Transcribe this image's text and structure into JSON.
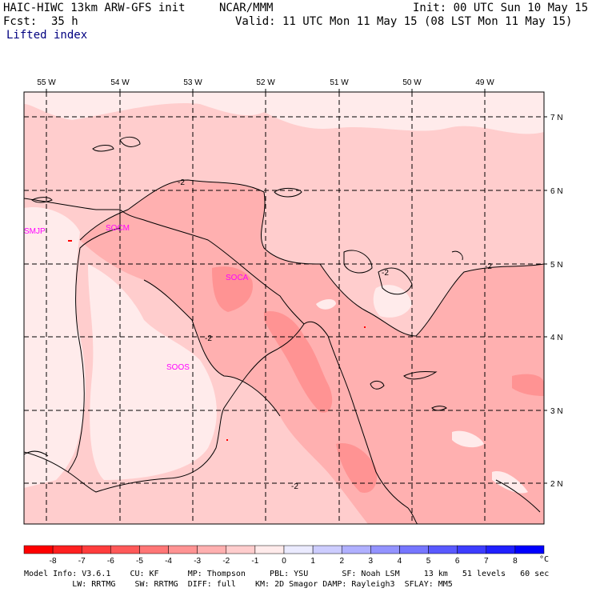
{
  "header": {
    "model": "HAIC-HIWC 13km ARW-GFS init",
    "org": "NCAR/MMM",
    "init": "Init: 00 UTC Sun 10 May 15",
    "fcst_label": "Fcst:",
    "fcst_value": "35 h",
    "valid": "Valid: 11 UTC Mon 11 May 15 (08 LST Mon 11 May 15)",
    "field": "Lifted index"
  },
  "map": {
    "lon_labels": [
      "55 W",
      "54 W",
      "53 W",
      "52 W",
      "51 W",
      "50 W",
      "49 W"
    ],
    "lat_labels": [
      "7 N",
      "6 N",
      "5 N",
      "4 N",
      "3 N",
      "2 N"
    ],
    "stations": [
      "SMJP",
      "SOCM",
      "SOCA",
      "SOOS"
    ],
    "contour_labels": [
      "-2",
      "-2",
      "-2",
      "-2",
      "-2"
    ]
  },
  "colorbar": {
    "labels": [
      "-8",
      "-7",
      "-6",
      "-5",
      "-4",
      "-3",
      "-2",
      "-1",
      "0",
      "1",
      "2",
      "3",
      "4",
      "5",
      "6",
      "7",
      "8"
    ],
    "unit": "°C",
    "colors": [
      "#ff0000",
      "#ff2020",
      "#ff3d3d",
      "#ff5959",
      "#ff7676",
      "#ff9393",
      "#ffb0b0",
      "#ffcdcd",
      "#ffebeb",
      "#ebebff",
      "#cdcdff",
      "#b0b0ff",
      "#9393ff",
      "#7676ff",
      "#5959ff",
      "#3d3dff",
      "#2020ff",
      "#0000ff"
    ]
  },
  "footer": {
    "line1": "Model Info: V3.6.1    CU: KF      MP: Thompson     PBL: YSU       SF: Noah LSM     13 km   51 levels   60 sec",
    "line2": "          LW: RRTMG    SW: RRTMG  DIFF: full    KM: 2D Smagor DAMP: Rayleigh3  SFLAY: MM5"
  },
  "colors": {
    "light": "#ffcdcd",
    "pale": "#ffebeb",
    "medium": "#ffb0b0",
    "deep": "#ff9393",
    "label": "#ff00ff",
    "title_blue": "#000080"
  }
}
